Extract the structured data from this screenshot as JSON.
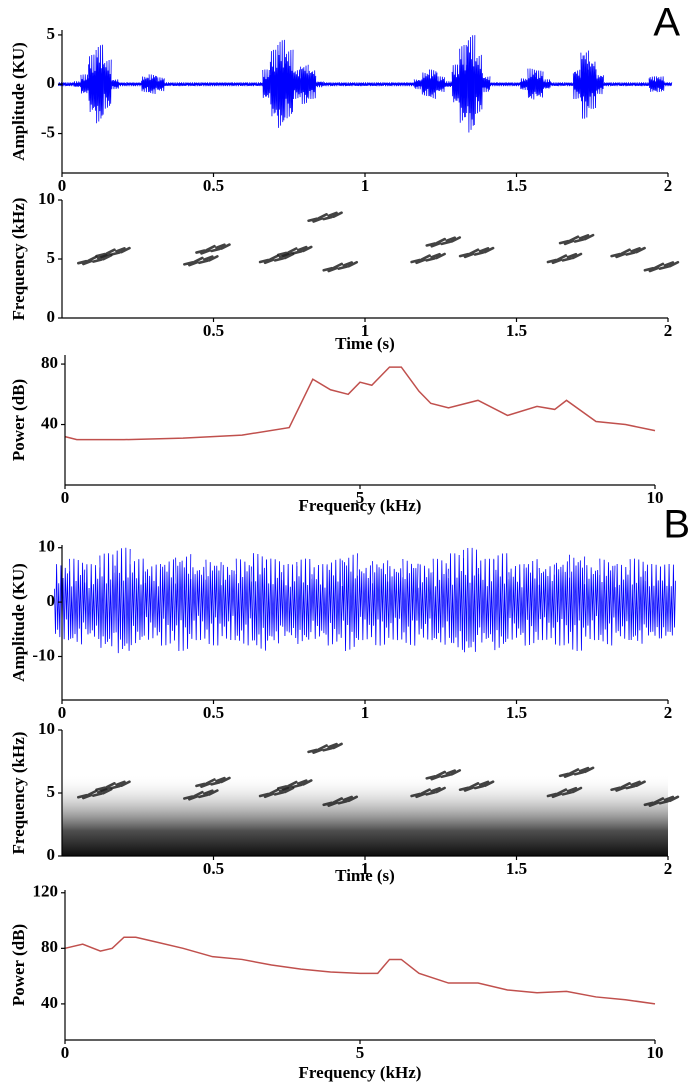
{
  "panels": [
    "A",
    "B"
  ],
  "chart_data": [
    {
      "type": "waveform",
      "ylabel": "Amplitude (KU)",
      "color": "#0000ff",
      "x": [
        0,
        0.025,
        0.05,
        0.075,
        0.1,
        0.125,
        0.15,
        0.175,
        0.2,
        0.225,
        0.25,
        0.275,
        0.3,
        0.325,
        0.35,
        0.375,
        0.4,
        0.425,
        0.45,
        0.475,
        0.5,
        0.525,
        0.55,
        0.575,
        0.6,
        0.625,
        0.65,
        0.675,
        0.7,
        0.725,
        0.75,
        0.775,
        0.8,
        0.825,
        0.85,
        0.875,
        0.9,
        0.925,
        0.95,
        0.975,
        1,
        1.025,
        1.05,
        1.075,
        1.1,
        1.125,
        1.15,
        1.175,
        1.2,
        1.225,
        1.25,
        1.275,
        1.3,
        1.325,
        1.35,
        1.375,
        1.4,
        1.425,
        1.45,
        1.475,
        1.5,
        1.525,
        1.55,
        1.575,
        1.6,
        1.625,
        1.65,
        1.675,
        1.7,
        1.725,
        1.75,
        1.775,
        1.8,
        1.825,
        1.85,
        1.875,
        1.9,
        1.925,
        1.95,
        1.975,
        2
      ],
      "values": [
        0.2,
        0.2,
        0.3,
        1,
        3,
        4,
        2.5,
        0.5,
        0.2,
        0.2,
        0.2,
        0.8,
        1,
        0.7,
        0.2,
        0.2,
        0.2,
        0.2,
        0.2,
        0.2,
        0.2,
        0.2,
        0.2,
        0.2,
        0.2,
        0.2,
        0.2,
        1.5,
        3.5,
        4.5,
        3.5,
        1.5,
        2,
        1.5,
        0.3,
        0.2,
        0.2,
        0.2,
        0.2,
        0.2,
        0.2,
        0.2,
        0.2,
        0.2,
        0.2,
        0.2,
        0.2,
        0.5,
        1.2,
        1.5,
        0.8,
        0.3,
        2,
        4,
        5,
        3,
        0.8,
        0.2,
        0.2,
        0.2,
        0.2,
        0.6,
        1.6,
        1.4,
        0.5,
        0.2,
        0.2,
        0.2,
        1.5,
        3.5,
        2.5,
        1,
        0.2,
        0.2,
        0.2,
        0.2,
        0.2,
        0.2,
        0.8,
        0.8,
        0.2
      ],
      "xlim": [
        0,
        2
      ],
      "xticks": [
        0,
        0.5,
        1,
        1.5,
        2
      ],
      "ylim": [
        -9,
        5.5
      ],
      "yticks": [
        -5,
        0,
        5
      ]
    },
    {
      "type": "scatter",
      "ylabel": "Frequency (kHz)",
      "xlabel": "Time (s)",
      "color": "#222222",
      "x": [
        0.1,
        0.16,
        0.45,
        0.49,
        0.7,
        0.76,
        0.86,
        0.91,
        1.2,
        1.25,
        1.36,
        1.65,
        1.69,
        1.86,
        1.97
      ],
      "values": [
        4.9,
        5.5,
        4.8,
        5.8,
        5,
        5.6,
        8.5,
        4.3,
        5,
        6.4,
        5.5,
        5,
        6.6,
        5.5,
        4.3
      ],
      "xlim": [
        0,
        2
      ],
      "xticks": [
        0.5,
        1,
        1.5,
        2
      ],
      "ylim": [
        0,
        10
      ],
      "yticks": [
        0,
        5,
        10
      ]
    },
    {
      "type": "line",
      "ylabel": "Power (dB)",
      "xlabel": "Frequency (kHz)",
      "color": "#c0504d",
      "x": [
        0,
        0.2,
        1,
        2,
        3,
        3.8,
        4.2,
        4.5,
        4.8,
        5,
        5.2,
        5.5,
        5.7,
        6,
        6.2,
        6.5,
        7,
        7.5,
        8,
        8.3,
        8.5,
        9,
        9.5,
        10
      ],
      "values": [
        32,
        30,
        30,
        31,
        33,
        38,
        70,
        63,
        60,
        68,
        66,
        78,
        78,
        62,
        54,
        51,
        56,
        46,
        52,
        50,
        56,
        42,
        40,
        36
      ],
      "xlim": [
        0,
        10
      ],
      "xticks": [
        0,
        5,
        10
      ],
      "ylim": [
        0,
        86
      ],
      "yticks": [
        40,
        80
      ]
    },
    {
      "type": "waveform",
      "ylabel": "Amplitude (KU)",
      "color": "#0000ff",
      "x": [
        0,
        0.05,
        0.1,
        0.15,
        0.2,
        0.25,
        0.3,
        0.35,
        0.4,
        0.45,
        0.5,
        0.55,
        0.6,
        0.65,
        0.7,
        0.75,
        0.8,
        0.85,
        0.9,
        0.95,
        1,
        1.05,
        1.1,
        1.15,
        1.2,
        1.25,
        1.3,
        1.35,
        1.4,
        1.45,
        1.5,
        1.55,
        1.6,
        1.65,
        1.7,
        1.75,
        1.8,
        1.85,
        1.9,
        1.95,
        2
      ],
      "values": [
        7,
        8,
        7,
        9,
        10,
        8,
        7,
        8,
        9,
        7,
        8,
        7,
        8,
        9,
        8,
        7,
        8,
        7,
        8,
        9,
        7,
        8,
        7,
        8,
        7,
        8,
        9,
        10,
        8,
        9,
        7,
        8,
        7,
        8,
        9,
        7,
        8,
        7,
        8,
        7,
        7
      ],
      "xlim": [
        0,
        2
      ],
      "xticks": [
        0,
        0.5,
        1,
        1.5,
        2
      ],
      "ylim": [
        -18,
        10.5
      ],
      "yticks": [
        -10,
        0,
        10
      ]
    },
    {
      "type": "scatter",
      "ylabel": "Frequency (kHz)",
      "xlabel": "Time (s)",
      "color": "#222222",
      "x": [
        0.1,
        0.16,
        0.45,
        0.49,
        0.7,
        0.76,
        0.86,
        0.91,
        1.2,
        1.25,
        1.36,
        1.65,
        1.69,
        1.86,
        1.97
      ],
      "values": [
        4.9,
        5.5,
        4.8,
        5.8,
        5,
        5.6,
        8.5,
        4.3,
        5,
        6.4,
        5.5,
        5,
        6.6,
        5.5,
        4.3
      ],
      "xlim": [
        0,
        2
      ],
      "xticks": [
        0.5,
        1,
        1.5,
        2
      ],
      "ylim": [
        0,
        10
      ],
      "yticks": [
        0,
        5,
        10
      ]
    },
    {
      "type": "line",
      "ylabel": "Power (dB)",
      "xlabel": "Frequency (kHz)",
      "color": "#c0504d",
      "x": [
        0,
        0.3,
        0.6,
        0.8,
        1,
        1.2,
        1.5,
        2,
        2.5,
        3,
        3.5,
        4,
        4.5,
        5,
        5.3,
        5.5,
        5.7,
        6,
        6.5,
        7,
        7.5,
        8,
        8.5,
        9,
        9.5,
        10
      ],
      "values": [
        80,
        83,
        78,
        80,
        88,
        88,
        85,
        80,
        74,
        72,
        68,
        65,
        63,
        62,
        62,
        72,
        72,
        62,
        55,
        55,
        50,
        48,
        49,
        45,
        43,
        40
      ],
      "xlim": [
        0,
        10
      ],
      "xticks": [
        0,
        5,
        10
      ],
      "ylim": [
        14,
        122
      ],
      "yticks": [
        40,
        80,
        120
      ]
    }
  ]
}
